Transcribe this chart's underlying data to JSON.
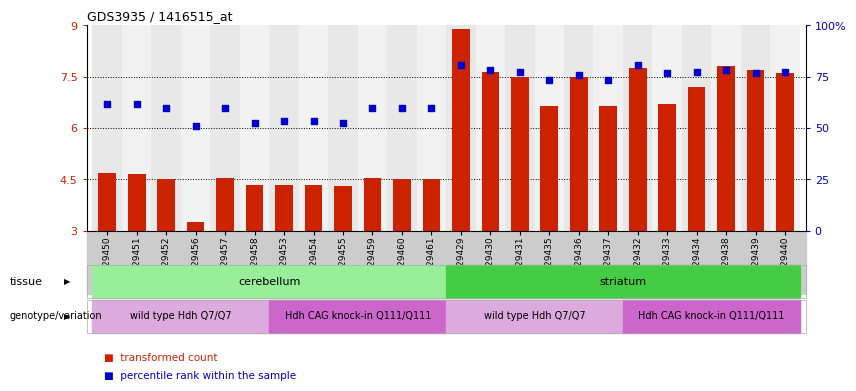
{
  "title": "GDS3935 / 1416515_at",
  "samples": [
    "GSM229450",
    "GSM229451",
    "GSM229452",
    "GSM229456",
    "GSM229457",
    "GSM229458",
    "GSM229453",
    "GSM229454",
    "GSM229455",
    "GSM229459",
    "GSM229460",
    "GSM229461",
    "GSM229429",
    "GSM229430",
    "GSM229431",
    "GSM229435",
    "GSM229436",
    "GSM229437",
    "GSM229432",
    "GSM229433",
    "GSM229434",
    "GSM229438",
    "GSM229439",
    "GSM229440"
  ],
  "bar_values": [
    4.7,
    4.65,
    4.5,
    3.25,
    4.55,
    4.35,
    4.35,
    4.35,
    4.3,
    4.55,
    4.5,
    4.5,
    8.9,
    7.65,
    7.5,
    6.65,
    7.5,
    6.65,
    7.75,
    6.7,
    7.2,
    7.8,
    7.7,
    7.6
  ],
  "dot_values": [
    6.7,
    6.7,
    6.6,
    6.05,
    6.6,
    6.15,
    6.2,
    6.2,
    6.15,
    6.6,
    6.6,
    6.6,
    7.85,
    7.7,
    7.65,
    7.4,
    7.55,
    7.4,
    7.85,
    7.6,
    7.65,
    7.7,
    7.6,
    7.65
  ],
  "ymin": 3.0,
  "ymax": 9.0,
  "yticks": [
    3.0,
    4.5,
    6.0,
    7.5,
    9.0
  ],
  "ytick_labels": [
    "3",
    "4.5",
    "6",
    "7.5",
    "9"
  ],
  "y2ticks": [
    0,
    25,
    50,
    75,
    100
  ],
  "y2tick_labels": [
    "0",
    "25",
    "50",
    "75",
    "100%"
  ],
  "hlines": [
    4.5,
    6.0,
    7.5
  ],
  "bar_color": "#cc2200",
  "dot_color": "#0000cc",
  "bar_width": 0.6,
  "tissue_labels": [
    {
      "text": "cerebellum",
      "xstart": 0,
      "xend": 11,
      "color": "#99ee99"
    },
    {
      "text": "striatum",
      "xstart": 12,
      "xend": 23,
      "color": "#44cc44"
    }
  ],
  "genotype_labels": [
    {
      "text": "wild type Hdh Q7/Q7",
      "xstart": 0,
      "xend": 5,
      "color": "#ddaadd"
    },
    {
      "text": "Hdh CAG knock-in Q111/Q111",
      "xstart": 6,
      "xend": 11,
      "color": "#cc66cc"
    },
    {
      "text": "wild type Hdh Q7/Q7",
      "xstart": 12,
      "xend": 17,
      "color": "#ddaadd"
    },
    {
      "text": "Hdh CAG knock-in Q111/Q111",
      "xstart": 18,
      "xend": 23,
      "color": "#cc66cc"
    }
  ],
  "tissue_row_label": "tissue",
  "genotype_row_label": "genotype/variation",
  "legend_entries": [
    {
      "color": "#cc2200",
      "label": "transformed count"
    },
    {
      "color": "#0000cc",
      "label": "percentile rank within the sample"
    }
  ],
  "xtick_bg": "#dddddd",
  "spine_color": "#aaaaaa"
}
